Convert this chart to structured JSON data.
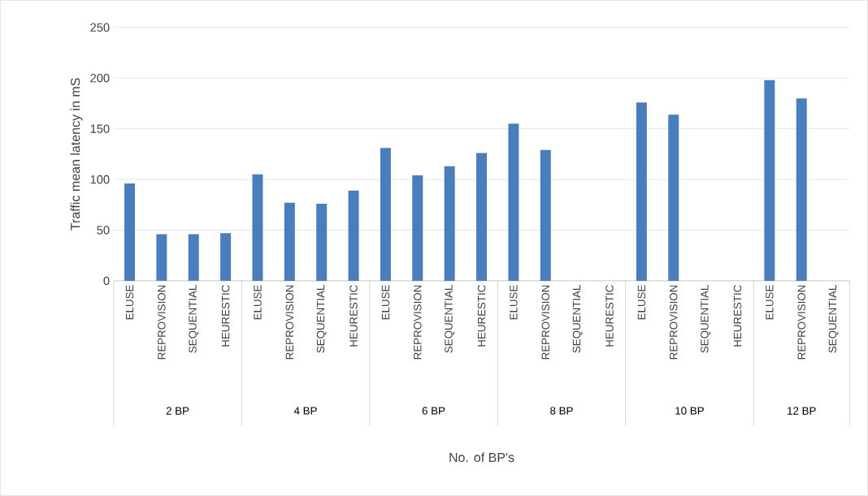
{
  "chart_data": {
    "type": "bar",
    "ylabel": "Traffic mean latency in mS",
    "categories": [
      "ELUSE",
      "REPROVISION",
      "SEQUENTIAL",
      "HEURESTIC",
      "ELUSE",
      "REPROVISION",
      "SEQUENTIAL",
      "HEURESTIC",
      "ELUSE",
      "REPROVISION",
      "SEQUENTIAL",
      "HEURESTIC",
      "ELUSE",
      "REPROVISION",
      "SEQUENTIAL",
      "HEURESTIC",
      "ELUSE",
      "REPROVISION",
      "SEQUENTIAL",
      "HEURESTIC",
      "ELUSE",
      "REPROVISION",
      "SEQUENTIAL"
    ],
    "values": [
      96,
      46,
      46,
      47,
      105,
      77,
      76,
      89,
      131,
      104,
      113,
      126,
      155,
      129,
      null,
      null,
      176,
      164,
      null,
      null,
      198,
      180,
      null
    ],
    "color": "#4a7ebb",
    "ylim": [
      0,
      250
    ],
    "yticks": [
      0,
      50,
      100,
      150,
      200,
      250
    ],
    "grid": "y",
    "annotations": [
      "2 BP",
      "4 BP",
      "6 BP",
      "8 BP",
      "10 BP",
      "12 BP",
      "No. of BP's"
    ]
  }
}
